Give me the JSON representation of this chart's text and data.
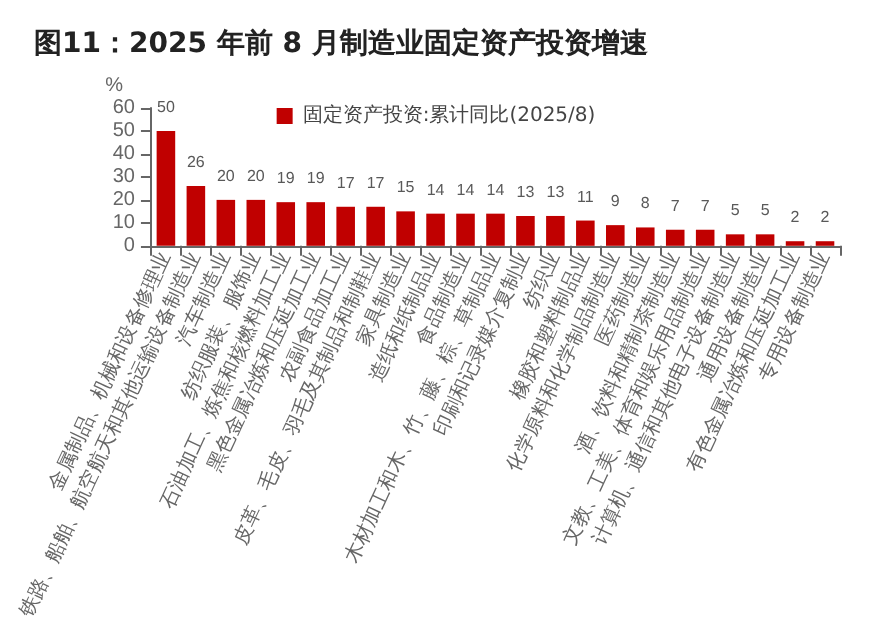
{
  "chart_data": {
    "type": "bar",
    "title": "图11：2025 年前 8 月制造业固定资产投资增速",
    "ylabel": "%",
    "categories": [
      "金属制品、机械和设备修理业",
      "铁路、船舶、航空航天和其他运输设备制造业",
      "汽车制造业",
      "纺织服装、服饰业",
      "石油加工、炼焦和核燃料加工业",
      "黑色金属冶炼和压延加工业",
      "农副食品加工业",
      "皮革、毛皮、羽毛及其制品和制鞋业",
      "家具制造业",
      "造纸和纸制品业",
      "食品制造业",
      "木材加工和木、竹、藤、棕、草制品业",
      "印刷和记录媒介复制业",
      "纺织业",
      "橡胶和塑料制品业",
      "化学原料和化学制品制造业",
      "医药制造业",
      "酒、饮料和精制茶制造业",
      "文教、工美、体育和娱乐用品制造业",
      "计算机、通信和其他电子设备制造业",
      "通用设备制造业",
      "有色金属冶炼和压延加工业",
      "专用设备制造业"
    ],
    "series": [
      {
        "name": "固定资产投资:累计同比(2025/8)",
        "color": "#c00000",
        "values": [
          50,
          26,
          20,
          20,
          19,
          19,
          17,
          17,
          15,
          14,
          14,
          14,
          13,
          13,
          11,
          9,
          8,
          7,
          7,
          5,
          5,
          2,
          2
        ]
      }
    ],
    "ylim": [
      0,
      60
    ],
    "yticks": [
      0,
      10,
      20,
      30,
      40,
      50,
      60
    ],
    "grid": false,
    "legend": "top",
    "data_labels": true
  }
}
